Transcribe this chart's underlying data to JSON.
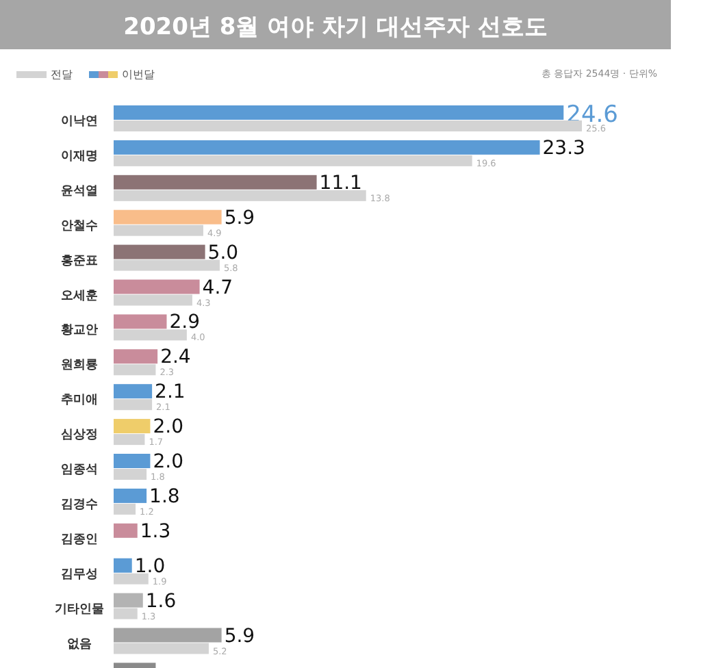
{
  "chart_data": {
    "type": "bar",
    "orientation": "horizontal",
    "title": "2020년 8월 여야 차기 대선주자 선호도",
    "annotations": [
      "총 응답자 2544명 · 단위%"
    ],
    "categories": [
      "이낙연",
      "이재명",
      "윤석열",
      "안철수",
      "홍준표",
      "오세훈",
      "황교안",
      "원희룡",
      "추미애",
      "심상정",
      "임종석",
      "김경수",
      "김종인",
      "김무성",
      "기타인물",
      "없음",
      null
    ],
    "series": [
      {
        "name": "이번달",
        "values": [
          24.6,
          23.3,
          11.1,
          5.9,
          5.0,
          4.7,
          2.9,
          2.4,
          2.1,
          2.0,
          2.0,
          1.8,
          1.3,
          1.0,
          1.6,
          5.9,
          2.3
        ],
        "value_labels": [
          "24.6",
          "23.3",
          "11.1",
          "5.9",
          "5.0",
          "4.7",
          "2.9",
          "2.4",
          "2.1",
          "2.0",
          "2.0",
          "1.8",
          "1.3",
          "1.0",
          "1.6",
          "5.9",
          null
        ],
        "colors": [
          "#5b9bd5",
          "#5b9bd5",
          "#8c7375",
          "#f9bd8a",
          "#8c7375",
          "#c98c9b",
          "#c98c9b",
          "#c98c9b",
          "#5b9bd5",
          "#efcd6a",
          "#5b9bd5",
          "#5b9bd5",
          "#c98c9b",
          "#5b9bd5",
          "#b3b3b3",
          "#a3a3a3",
          "#8a8a8a"
        ]
      },
      {
        "name": "전달",
        "color": "#d3d3d3",
        "values": [
          25.6,
          19.6,
          13.8,
          4.9,
          5.8,
          4.3,
          4.0,
          2.3,
          2.1,
          1.7,
          1.8,
          1.2,
          null,
          1.9,
          1.3,
          5.2,
          null
        ],
        "value_labels": [
          "25.6",
          "19.6",
          "13.8",
          "4.9",
          "5.8",
          "4.3",
          "4.0",
          "2.3",
          "2.1",
          "1.7",
          "1.8",
          "1.2",
          null,
          "1.9",
          "1.3",
          "5.2",
          null
        ]
      }
    ],
    "legend": "top left"
  }
}
